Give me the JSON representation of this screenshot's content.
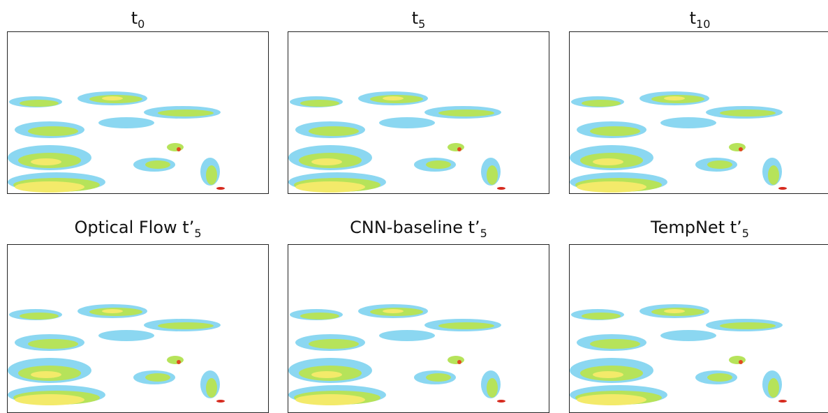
{
  "panels": [
    {
      "title": {
        "text": "t",
        "sub": "0"
      }
    },
    {
      "title": {
        "text": "t",
        "sub": "5"
      }
    },
    {
      "title": {
        "text": "t",
        "sub": "10"
      }
    },
    {
      "title": {
        "text": "Optical Flow t’",
        "sub": "5"
      }
    },
    {
      "title": {
        "text": "CNN-baseline t’",
        "sub": "5"
      }
    },
    {
      "title": {
        "text": "TempNet t’",
        "sub": "5"
      }
    }
  ]
}
